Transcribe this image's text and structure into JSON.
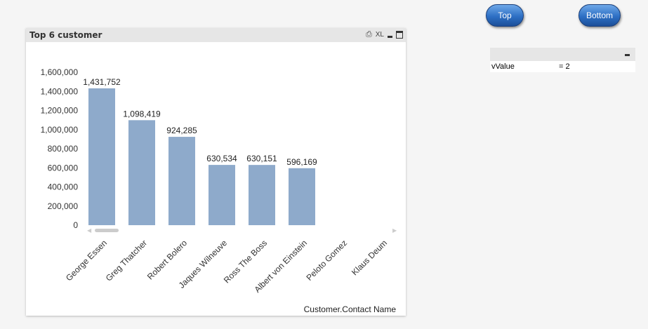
{
  "buttons": {
    "top": "Top",
    "bottom": "Bottom"
  },
  "variable": {
    "name": "vValue",
    "value": "= 2",
    "minimize_icon": "minimize-icon"
  },
  "panel": {
    "title": "Top 6 customer",
    "icons": [
      "print-icon",
      "excel-icon",
      "minimize-icon",
      "maximize-icon"
    ],
    "xl_label": "XL"
  },
  "chart_data": {
    "type": "bar",
    "title": "Top 6 customer",
    "xlabel": "Customer.Contact Name",
    "ylabel": "",
    "ylim": [
      0,
      1600000
    ],
    "yticks": [
      "0",
      "200,000",
      "400,000",
      "600,000",
      "800,000",
      "1,000,000",
      "1,200,000",
      "1,400,000",
      "1,600,000"
    ],
    "categories": [
      "George Essen",
      "Greg Thatcher",
      "Robert Bolero",
      "Jaques Wilneuve",
      "Ross The Boss",
      "Albert von Einstein",
      "Peloto Gomez",
      "Klaus Deum"
    ],
    "values": [
      1431752,
      1098419,
      924285,
      630534,
      630151,
      596169,
      null,
      null
    ],
    "data_labels": [
      "1,431,752",
      "1,098,419",
      "924,285",
      "630,534",
      "630,151",
      "596,169",
      "",
      ""
    ],
    "bar_color": "#8eaacb",
    "grid": false
  }
}
